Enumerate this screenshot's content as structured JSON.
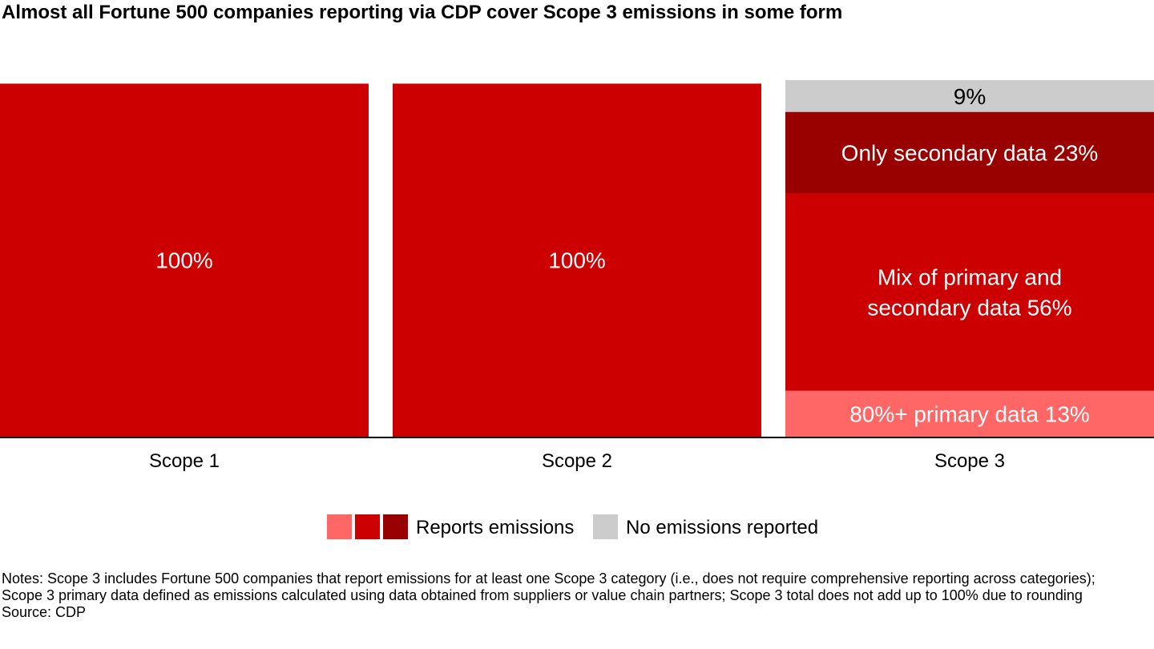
{
  "title": "Almost all Fortune 500 companies reporting via CDP cover Scope 3 emissions in some form",
  "chart_data": {
    "type": "bar",
    "stacked": true,
    "categories": [
      "Scope 1",
      "Scope 2",
      "Scope 3"
    ],
    "series": [
      {
        "key": "primary80",
        "values": [
          0,
          0,
          13
        ],
        "color": "#ff6666",
        "labels": [
          "",
          "",
          "80%+ primary data 13%"
        ]
      },
      {
        "key": "mix",
        "values": [
          100,
          100,
          56
        ],
        "color": "#cc0000",
        "labels": [
          "100%",
          "100%",
          "Mix of primary and\nsecondary data 56%"
        ]
      },
      {
        "key": "secondary",
        "values": [
          0,
          0,
          23
        ],
        "color": "#990000",
        "labels": [
          "",
          "",
          "Only secondary data 23%"
        ]
      },
      {
        "key": "none",
        "values": [
          0,
          0,
          9
        ],
        "color": "#cccccc",
        "labels": [
          "",
          "",
          "9%"
        ]
      }
    ],
    "ylim": [
      0,
      101
    ],
    "legend_position": "bottom"
  },
  "legend": {
    "reports_label": "Reports emissions",
    "reports_colors": [
      "#ff6666",
      "#cc0000",
      "#990000"
    ],
    "none_label": "No emissions reported",
    "none_color": "#cccccc"
  },
  "notes": {
    "text": "Notes: Scope 3 includes Fortune 500 companies that report emissions for at least one Scope 3 category (i.e., does not require comprehensive reporting across categories); Scope 3 primary data defined as emissions calculated using data obtained from suppliers or value chain partners; Scope 3 total does not add up to 100% due to rounding",
    "source": "Source: CDP"
  }
}
